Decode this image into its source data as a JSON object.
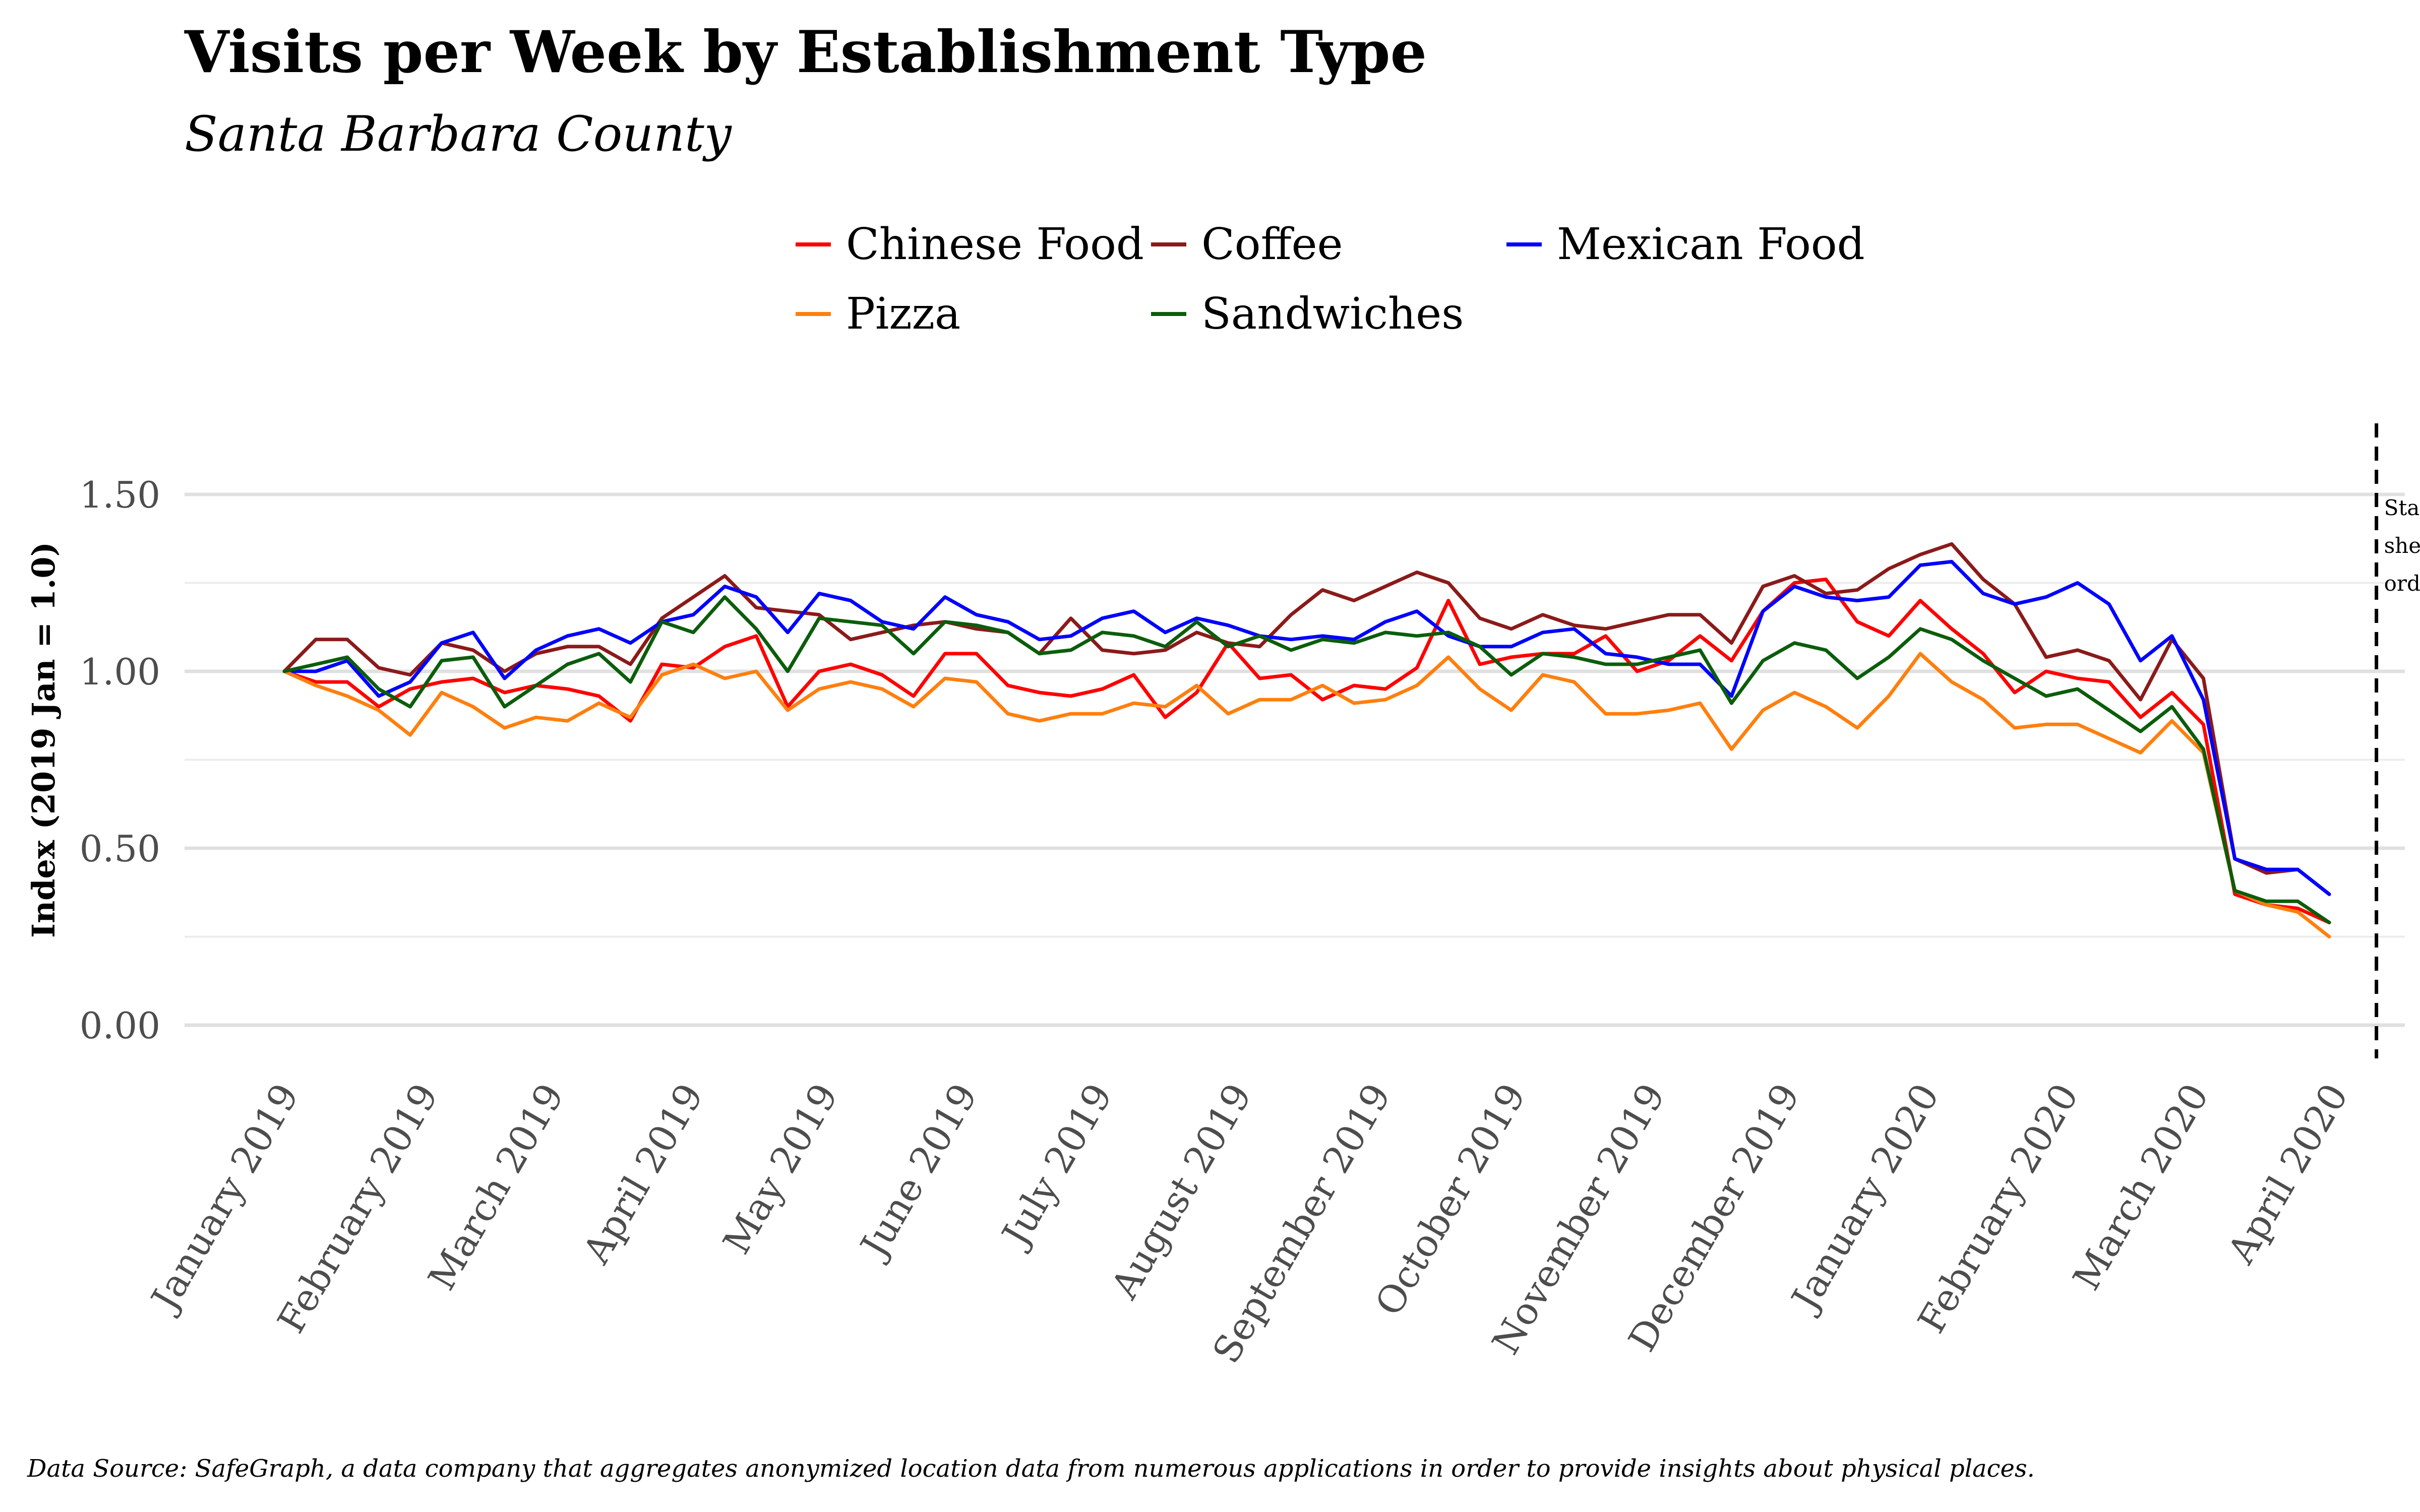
{
  "title": "Visits per Week by Establishment Type",
  "subtitle": "Santa Barbara County",
  "caption": "Data Source: SafeGraph, a data company that aggregates anonymized location data from numerous applications in order to provide insights about physical places.",
  "chart_data": {
    "type": "line",
    "title": "Visits per Week by Establishment Type",
    "subtitle": "Santa Barbara County",
    "xlabel": "",
    "ylabel": "Index (2019 Jan = 1.0)",
    "ylim": [
      0,
      1.6
    ],
    "yticks": [
      0.0,
      0.5,
      1.0,
      1.5
    ],
    "ytick_labels": [
      "0.00",
      "0.50",
      "1.00",
      "1.50"
    ],
    "xtick_labels": [
      "January 2019",
      "February 2019",
      "March 2019",
      "April 2019",
      "May 2019",
      "June 2019",
      "July 2019",
      "August 2019",
      "September 2019",
      "October 2019",
      "November 2019",
      "December 2019",
      "January 2020",
      "February 2020",
      "March 2020",
      "April 2020"
    ],
    "x_unit": "week index from first week of January 2019",
    "grid": true,
    "legend_position": "top",
    "annotation": {
      "lines": [
        "Statewide",
        " shelter-in-place",
        "order issued"
      ],
      "x_week": 66.5
    },
    "series": [
      {
        "name": "Chinese Food",
        "color": "#ff0000",
        "values": [
          1.0,
          0.97,
          0.97,
          0.9,
          0.95,
          0.97,
          0.98,
          0.94,
          0.96,
          0.95,
          0.93,
          0.86,
          1.02,
          1.01,
          1.07,
          1.1,
          0.9,
          1.0,
          1.02,
          0.99,
          0.93,
          1.05,
          1.05,
          0.96,
          0.94,
          0.93,
          0.95,
          0.99,
          0.87,
          0.94,
          1.08,
          0.98,
          0.99,
          0.92,
          0.96,
          0.95,
          1.01,
          1.2,
          1.02,
          1.04,
          1.05,
          1.05,
          1.1,
          1.0,
          1.03,
          1.1,
          1.03,
          1.17,
          1.25,
          1.26,
          1.14,
          1.1,
          1.2,
          1.12,
          1.05,
          0.94,
          1.0,
          0.98,
          0.97,
          0.87,
          0.94,
          0.85,
          0.37,
          0.34,
          0.33,
          0.29
        ]
      },
      {
        "name": "Coffee",
        "color": "#8b1a1a",
        "values": [
          1.0,
          1.09,
          1.09,
          1.01,
          0.99,
          1.08,
          1.06,
          1.0,
          1.05,
          1.07,
          1.07,
          1.02,
          1.15,
          1.21,
          1.27,
          1.18,
          1.17,
          1.16,
          1.09,
          1.11,
          1.13,
          1.14,
          1.12,
          1.11,
          1.05,
          1.15,
          1.06,
          1.05,
          1.06,
          1.11,
          1.08,
          1.07,
          1.16,
          1.23,
          1.2,
          1.24,
          1.28,
          1.25,
          1.15,
          1.12,
          1.16,
          1.13,
          1.12,
          1.14,
          1.16,
          1.16,
          1.08,
          1.24,
          1.27,
          1.22,
          1.23,
          1.29,
          1.33,
          1.36,
          1.26,
          1.19,
          1.04,
          1.06,
          1.03,
          0.92,
          1.09,
          0.98,
          0.47,
          0.43,
          0.44,
          0.37
        ]
      },
      {
        "name": "Mexican Food",
        "color": "#0000ff",
        "values": [
          1.0,
          1.0,
          1.03,
          0.93,
          0.97,
          1.08,
          1.11,
          0.98,
          1.06,
          1.1,
          1.12,
          1.08,
          1.14,
          1.16,
          1.24,
          1.21,
          1.11,
          1.22,
          1.2,
          1.14,
          1.12,
          1.21,
          1.16,
          1.14,
          1.09,
          1.1,
          1.15,
          1.17,
          1.11,
          1.15,
          1.13,
          1.1,
          1.09,
          1.1,
          1.09,
          1.14,
          1.17,
          1.1,
          1.07,
          1.07,
          1.11,
          1.12,
          1.05,
          1.04,
          1.02,
          1.02,
          0.93,
          1.17,
          1.24,
          1.21,
          1.2,
          1.21,
          1.3,
          1.31,
          1.22,
          1.19,
          1.21,
          1.25,
          1.19,
          1.03,
          1.1,
          0.92,
          0.47,
          0.44,
          0.44,
          0.37
        ]
      },
      {
        "name": "Pizza",
        "color": "#ff7f0e",
        "values": [
          1.0,
          0.96,
          0.93,
          0.89,
          0.82,
          0.94,
          0.9,
          0.84,
          0.87,
          0.86,
          0.91,
          0.87,
          0.99,
          1.02,
          0.98,
          1.0,
          0.89,
          0.95,
          0.97,
          0.95,
          0.9,
          0.98,
          0.97,
          0.88,
          0.86,
          0.88,
          0.88,
          0.91,
          0.9,
          0.96,
          0.88,
          0.92,
          0.92,
          0.96,
          0.91,
          0.92,
          0.96,
          1.04,
          0.95,
          0.89,
          0.99,
          0.97,
          0.88,
          0.88,
          0.89,
          0.91,
          0.78,
          0.89,
          0.94,
          0.9,
          0.84,
          0.93,
          1.05,
          0.97,
          0.92,
          0.84,
          0.85,
          0.85,
          0.81,
          0.77,
          0.86,
          0.77,
          0.38,
          0.34,
          0.32,
          0.25
        ]
      },
      {
        "name": "Sandwiches",
        "color": "#0b5d0b",
        "values": [
          1.0,
          1.02,
          1.04,
          0.95,
          0.9,
          1.03,
          1.04,
          0.9,
          0.96,
          1.02,
          1.05,
          0.97,
          1.14,
          1.11,
          1.21,
          1.12,
          1.0,
          1.15,
          1.14,
          1.13,
          1.05,
          1.14,
          1.13,
          1.11,
          1.05,
          1.06,
          1.11,
          1.1,
          1.07,
          1.14,
          1.07,
          1.1,
          1.06,
          1.09,
          1.08,
          1.11,
          1.1,
          1.11,
          1.07,
          0.99,
          1.05,
          1.04,
          1.02,
          1.02,
          1.04,
          1.06,
          0.91,
          1.03,
          1.08,
          1.06,
          0.98,
          1.04,
          1.12,
          1.09,
          1.03,
          0.98,
          0.93,
          0.95,
          0.89,
          0.83,
          0.9,
          0.78,
          0.38,
          0.35,
          0.35,
          0.29
        ]
      }
    ]
  }
}
